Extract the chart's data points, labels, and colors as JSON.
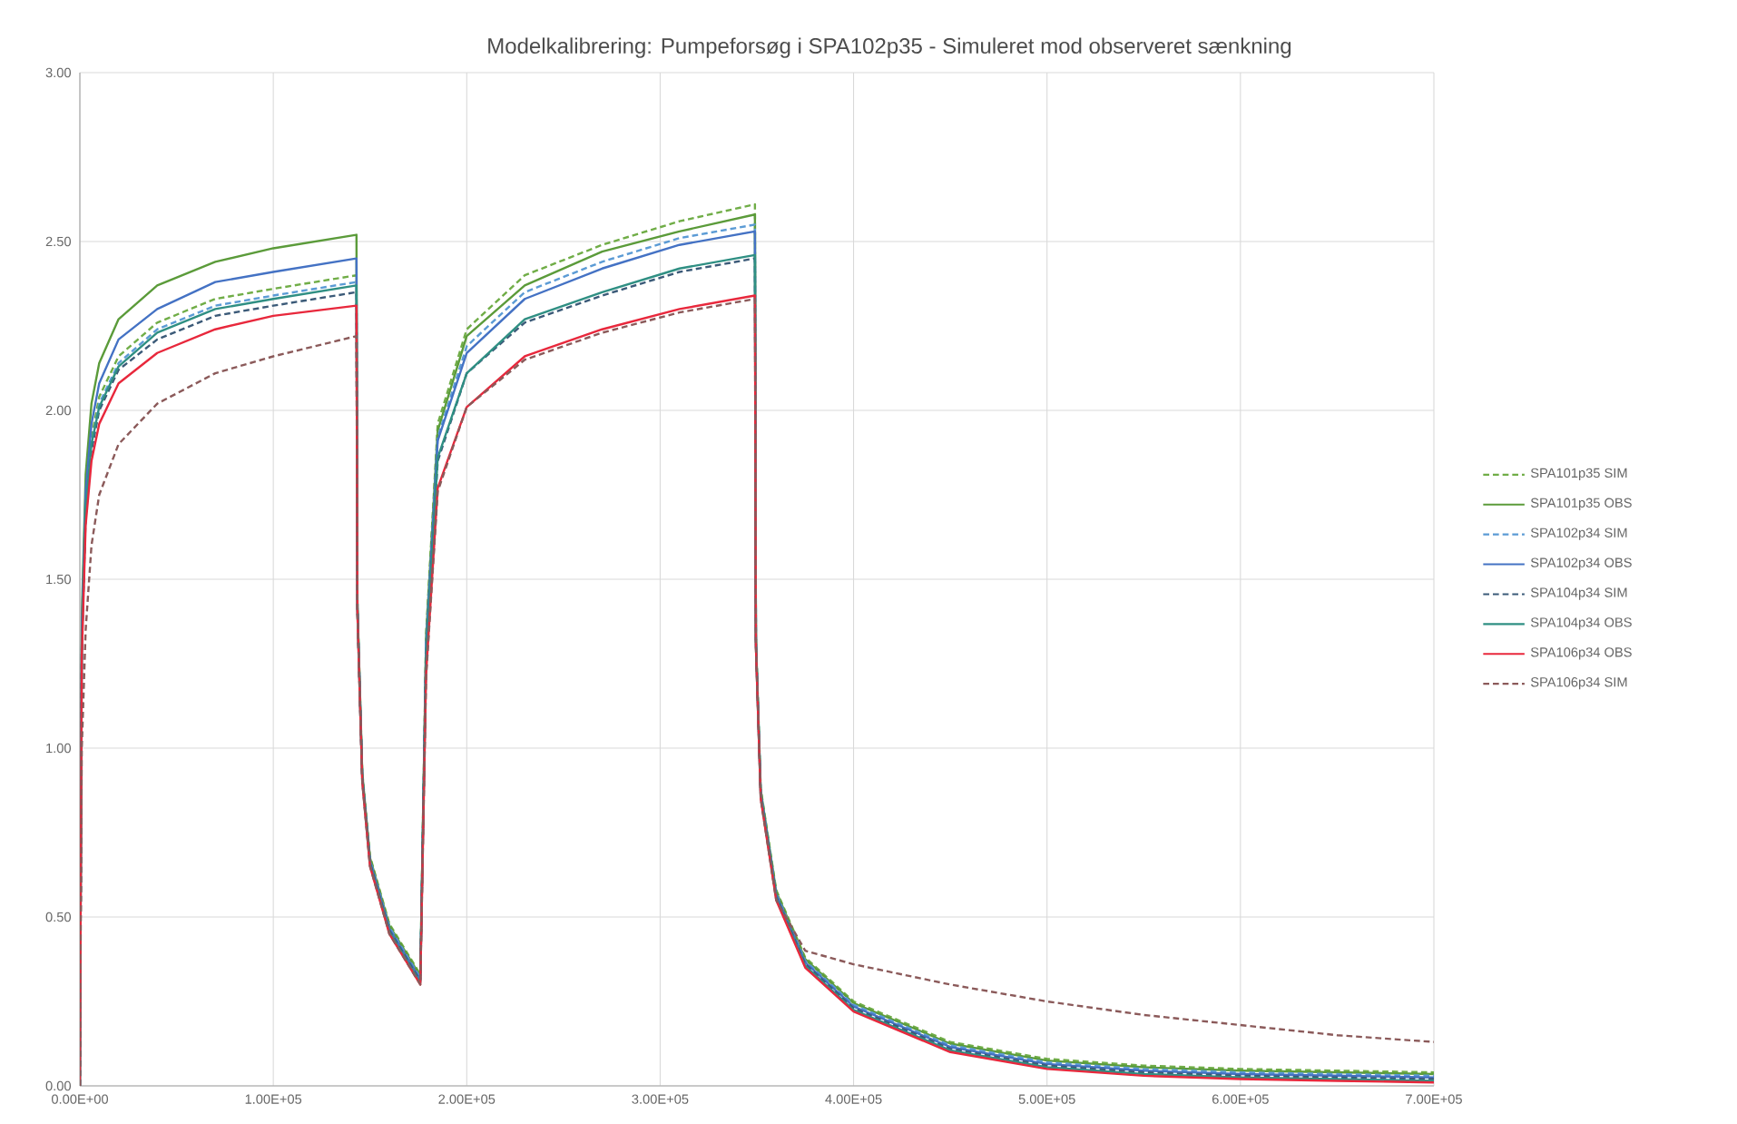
{
  "chart_data": {
    "type": "line",
    "title": "Modelkalibrering: Pumpeforsøg i SPA102p35 - Simuleret mod observeret sænkning",
    "x": [
      0,
      1000,
      3000,
      6000,
      10000,
      20000,
      40000,
      70000,
      100000,
      143000,
      143500,
      146000,
      150000,
      160000,
      176000,
      179000,
      185000,
      200000,
      230000,
      270000,
      310000,
      349000,
      349500,
      352000,
      360000,
      375000,
      400000,
      450000,
      500000,
      550000,
      600000,
      650000,
      700000
    ],
    "xlim": [
      0,
      700000
    ],
    "xticks": [
      {
        "value": 0,
        "label": "0.00E+00"
      },
      {
        "value": 100000,
        "label": "1.00E+05"
      },
      {
        "value": 200000,
        "label": "2.00E+05"
      },
      {
        "value": 300000,
        "label": "3.00E+05"
      },
      {
        "value": 400000,
        "label": "4.00E+05"
      },
      {
        "value": 500000,
        "label": "5.00E+05"
      },
      {
        "value": 600000,
        "label": "6.00E+05"
      },
      {
        "value": 700000,
        "label": "7.00E+05"
      }
    ],
    "ylim": [
      0,
      3
    ],
    "yticks": [
      {
        "value": 0,
        "label": "0.00"
      },
      {
        "value": 0.5,
        "label": "0.50"
      },
      {
        "value": 1,
        "label": "1.00"
      },
      {
        "value": 1.5,
        "label": "1.50"
      },
      {
        "value": 2,
        "label": "2.00"
      },
      {
        "value": 2.5,
        "label": "2.50"
      },
      {
        "value": 3,
        "label": "3.00"
      }
    ],
    "grid": true,
    "legend": "right",
    "marker": "none",
    "series": [
      {
        "name": "SPA101p35 SIM",
        "color": "#70ad47",
        "line_style": "dashed",
        "values": [
          0,
          1.32,
          1.73,
          1.92,
          2.04,
          2.16,
          2.26,
          2.33,
          2.36,
          2.4,
          1.43,
          0.93,
          0.68,
          0.48,
          0.33,
          1.34,
          1.96,
          2.24,
          2.4,
          2.49,
          2.56,
          2.61,
          1.33,
          0.88,
          0.58,
          0.38,
          0.25,
          0.13,
          0.08,
          0.06,
          0.05,
          0.045,
          0.04
        ]
      },
      {
        "name": "SPA101p35 OBS",
        "color": "#5b9b3a",
        "line_style": "solid",
        "values": [
          0,
          1.39,
          1.81,
          2.02,
          2.14,
          2.27,
          2.37,
          2.44,
          2.48,
          2.52,
          1.425,
          0.925,
          0.675,
          0.475,
          0.325,
          1.33,
          1.94,
          2.22,
          2.37,
          2.47,
          2.53,
          2.58,
          1.325,
          0.875,
          0.575,
          0.375,
          0.245,
          0.125,
          0.075,
          0.055,
          0.045,
          0.04,
          0.035
        ]
      },
      {
        "name": "SPA102p34 SIM",
        "color": "#5b9bd5",
        "line_style": "dashed",
        "values": [
          0,
          1.31,
          1.71,
          1.9,
          2.02,
          2.14,
          2.24,
          2.31,
          2.34,
          2.38,
          1.42,
          0.92,
          0.67,
          0.47,
          0.32,
          1.31,
          1.92,
          2.19,
          2.35,
          2.44,
          2.51,
          2.55,
          1.32,
          0.87,
          0.57,
          0.37,
          0.24,
          0.12,
          0.07,
          0.05,
          0.04,
          0.035,
          0.03
        ]
      },
      {
        "name": "SPA102p34 OBS",
        "color": "#4472c4",
        "line_style": "solid",
        "values": [
          0,
          1.35,
          1.76,
          1.96,
          2.08,
          2.21,
          2.3,
          2.38,
          2.41,
          2.45,
          1.415,
          0.915,
          0.665,
          0.465,
          0.315,
          1.3,
          1.91,
          2.17,
          2.33,
          2.42,
          2.49,
          2.53,
          1.315,
          0.865,
          0.565,
          0.365,
          0.235,
          0.115,
          0.065,
          0.045,
          0.035,
          0.03,
          0.025
        ]
      },
      {
        "name": "SPA104p34 SIM",
        "color": "#3b5a78",
        "line_style": "dashed",
        "values": [
          0,
          1.29,
          1.69,
          1.88,
          2.0,
          2.12,
          2.21,
          2.28,
          2.31,
          2.35,
          1.41,
          0.91,
          0.66,
          0.46,
          0.31,
          1.27,
          1.85,
          2.11,
          2.26,
          2.34,
          2.41,
          2.45,
          1.31,
          0.86,
          0.56,
          0.36,
          0.23,
          0.11,
          0.06,
          0.04,
          0.03,
          0.025,
          0.02
        ]
      },
      {
        "name": "SPA104p34 OBS",
        "color": "#2f8f83",
        "line_style": "solid",
        "values": [
          0,
          1.3,
          1.71,
          1.9,
          2.01,
          2.13,
          2.23,
          2.3,
          2.33,
          2.37,
          1.405,
          0.905,
          0.655,
          0.455,
          0.305,
          1.27,
          1.86,
          2.11,
          2.27,
          2.35,
          2.42,
          2.46,
          1.305,
          0.855,
          0.555,
          0.355,
          0.225,
          0.105,
          0.055,
          0.035,
          0.025,
          0.02,
          0.015
        ]
      },
      {
        "name": "SPA106p34 OBS",
        "color": "#e8283c",
        "line_style": "solid",
        "values": [
          0,
          1.27,
          1.66,
          1.85,
          1.96,
          2.08,
          2.17,
          2.24,
          2.28,
          2.31,
          1.4,
          0.9,
          0.65,
          0.45,
          0.3,
          1.22,
          1.77,
          2.01,
          2.16,
          2.24,
          2.3,
          2.34,
          1.3,
          0.85,
          0.55,
          0.35,
          0.22,
          0.1,
          0.05,
          0.03,
          0.02,
          0.015,
          0.01
        ]
      },
      {
        "name": "SPA106p34 SIM",
        "color": "#8b5a5a",
        "line_style": "dashed",
        "values": [
          0,
          1.0,
          1.35,
          1.6,
          1.75,
          1.9,
          2.02,
          2.11,
          2.16,
          2.22,
          1.4,
          0.9,
          0.65,
          0.45,
          0.3,
          1.21,
          1.76,
          2.01,
          2.15,
          2.23,
          2.29,
          2.33,
          1.3,
          0.85,
          0.55,
          0.4,
          0.36,
          0.3,
          0.25,
          0.21,
          0.18,
          0.15,
          0.13
        ]
      }
    ]
  }
}
